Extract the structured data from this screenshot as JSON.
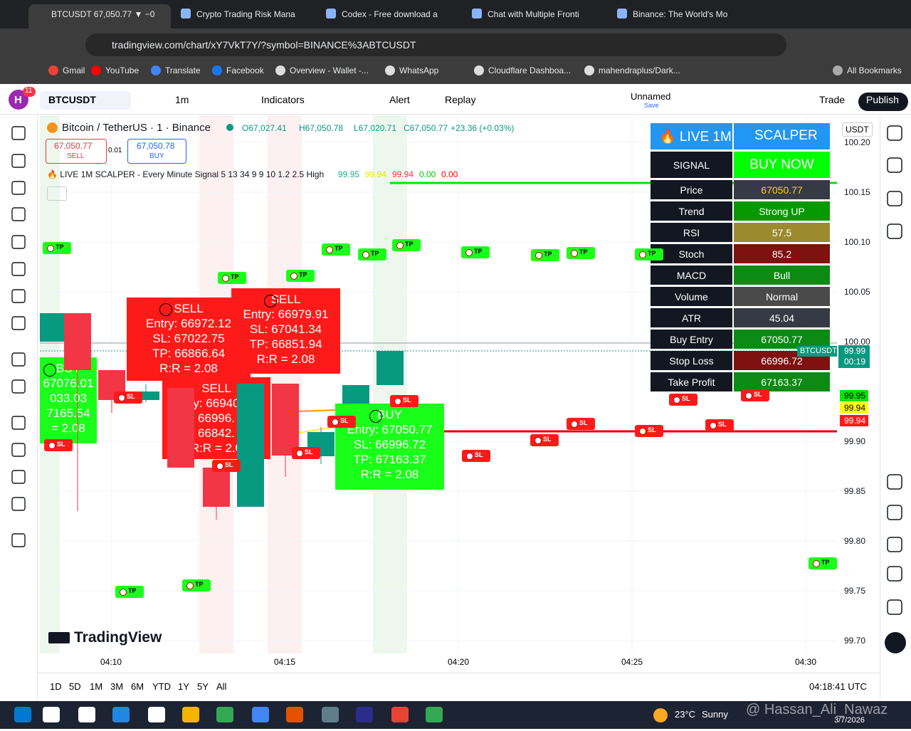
{
  "tabs": [
    "BTCUSDT 67,050.77 ▼ −0",
    "Crypto Trading Risk Mana",
    "Codex - Free download a",
    "Chat with Multiple Fronti",
    "Binance: The World's Mo"
  ],
  "url": "tradingview.com/chart/xY7VkT7Y/?symbol=BINANCE%3ABTCUSDT",
  "bookmarks": [
    "Gmail",
    "YouTube",
    "Translate",
    "Facebook",
    "Overview - Wallet -...",
    "WhatsApp",
    "Cloudflare Dashboa...",
    "mahendraplus/Dark...",
    "All Bookmarks"
  ],
  "toolbar": {
    "avatar": "H",
    "badge": "11",
    "symbol": "BTCUSDT",
    "interval": "1m",
    "indicators": "Indicators",
    "alert": "Alert",
    "replay": "Replay",
    "layout": "Unnamed",
    "save": "Save",
    "trade": "Trade",
    "publish": "Publish"
  },
  "legend": {
    "title": "Bitcoin / TetherUS · 1 · Binance",
    "ohlc": [
      "O67,027.41",
      "H67,050.78",
      "L67,020.71",
      "C67,050.77",
      "+23.36 (+0.03%)"
    ],
    "sell_price": "67,050.77",
    "sell": "SELL",
    "spread": "0.01",
    "buy_price": "67,050.78",
    "buy": "BUY"
  },
  "indicator": {
    "name": "🔥 LIVE 1M SCALPER - Every Minute Signal 5 13 34 9 9 10 1.2 2.5 High",
    "values": [
      "99.95",
      "99.94",
      "99.94",
      "0.00",
      "0.00"
    ]
  },
  "panel": {
    "header": [
      "🔥 LIVE 1M",
      "SCALPER"
    ],
    "rows": [
      [
        "SIGNAL",
        "BUY NOW"
      ],
      [
        "Price",
        "67050.77"
      ],
      [
        "Trend",
        "Strong UP"
      ],
      [
        "RSI",
        "57.5"
      ],
      [
        "Stoch",
        "85.2"
      ],
      [
        "MACD",
        "Bull"
      ],
      [
        "Volume",
        "Normal"
      ],
      [
        "ATR",
        "45.04"
      ],
      [
        "Buy Entry",
        "67050.77"
      ],
      [
        "Stop Loss",
        "66996.72"
      ],
      [
        "Take Profit",
        "67163.37"
      ]
    ]
  },
  "signals": [
    [
      "SELL",
      "y: 66940",
      "66996.",
      "66842.",
      "R:R = 2.0"
    ],
    [
      "SELL",
      "Entry: 66972.12",
      "SL: 67022.75",
      "TP: 66866.64",
      "R:R = 2.08"
    ],
    [
      "SELL",
      "Entry: 66979.91",
      "SL: 67041.34",
      "TP: 66851.94",
      "R:R = 2.08"
    ],
    [
      "BUY",
      "Entry: 67050.77",
      "SL: 66996.72",
      "TP: 67163.37",
      "R:R = 2.08"
    ],
    [
      "BUY",
      "67076.01",
      "033.03",
      "7165.54",
      "= 2.08"
    ]
  ],
  "markers": {
    "tp": "TP",
    "sl": "SL"
  },
  "price_axis": {
    "currency": "USDT",
    "ticks": [
      "100.20",
      "100.15",
      "100.10",
      "100.05",
      "100.00",
      "99.90",
      "99.85",
      "99.80",
      "99.75",
      "99.70"
    ],
    "symbol": "BTCUSDT",
    "last": "99.99",
    "countdown": "00:19",
    "levels": [
      "99.95",
      "99.94",
      "99.94"
    ]
  },
  "time_axis": [
    "04:10",
    "04:15",
    "04:20",
    "04:25",
    "04:30"
  ],
  "ranges": [
    "1D",
    "5D",
    "1M",
    "3M",
    "6M",
    "YTD",
    "1Y",
    "5Y",
    "All"
  ],
  "clock": "04:18:41 UTC",
  "logo": "TradingView",
  "taskbar": {
    "weather": "23°C",
    "condition": "Sunny",
    "date": "3/7/2026",
    "watermark": "@ Hassan_Ali_Nawaz"
  }
}
